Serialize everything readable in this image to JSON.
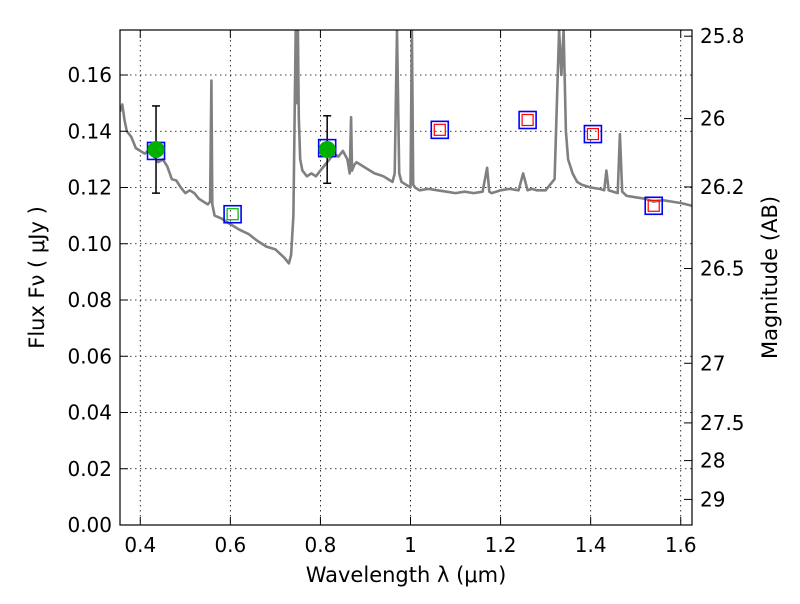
{
  "chart_data": {
    "type": "scatter",
    "xlabel": "Wavelength  λ (μm)",
    "ylabel": "Flux  Fν  ( μJy )",
    "ylabel_right": "Magnitude (AB)",
    "xlim": [
      0.355,
      1.625
    ],
    "ylim": [
      0.0,
      0.176
    ],
    "grid": true,
    "x_ticks": [
      {
        "value": 0.4,
        "label": "0.4"
      },
      {
        "value": 0.6,
        "label": "0.6"
      },
      {
        "value": 0.8,
        "label": "0.8"
      },
      {
        "value": 1.0,
        "label": "1"
      },
      {
        "value": 1.2,
        "label": "1.2"
      },
      {
        "value": 1.4,
        "label": "1.4"
      },
      {
        "value": 1.6,
        "label": "1.6"
      }
    ],
    "y_ticks": [
      {
        "value": 0.0,
        "label": "0.00"
      },
      {
        "value": 0.02,
        "label": "0.02"
      },
      {
        "value": 0.04,
        "label": "0.04"
      },
      {
        "value": 0.06,
        "label": "0.06"
      },
      {
        "value": 0.08,
        "label": "0.08"
      },
      {
        "value": 0.1,
        "label": "0.10"
      },
      {
        "value": 0.12,
        "label": "0.12"
      },
      {
        "value": 0.14,
        "label": "0.14"
      },
      {
        "value": 0.16,
        "label": "0.16"
      }
    ],
    "right_ticks": [
      {
        "flux": 0.1738,
        "label": "25.8"
      },
      {
        "flux": 0.1445,
        "label": "26"
      },
      {
        "flux": 0.1202,
        "label": "26.2"
      },
      {
        "flux": 0.0912,
        "label": "26.5"
      },
      {
        "flux": 0.0575,
        "label": "27"
      },
      {
        "flux": 0.0363,
        "label": "27.5"
      },
      {
        "flux": 0.0229,
        "label": "28"
      },
      {
        "flux": 0.0091,
        "label": "29"
      }
    ],
    "series": [
      {
        "kind": "model_spectrum",
        "color": "#808080",
        "x": [
          0.355,
          0.36,
          0.365,
          0.37,
          0.38,
          0.39,
          0.4,
          0.41,
          0.42,
          0.43,
          0.44,
          0.45,
          0.46,
          0.47,
          0.48,
          0.49,
          0.5,
          0.51,
          0.52,
          0.53,
          0.54,
          0.55,
          0.555,
          0.558,
          0.56,
          0.565,
          0.58,
          0.6,
          0.62,
          0.64,
          0.66,
          0.68,
          0.7,
          0.72,
          0.73,
          0.735,
          0.74,
          0.745,
          0.748,
          0.75,
          0.752,
          0.755,
          0.76,
          0.77,
          0.78,
          0.79,
          0.8,
          0.81,
          0.82,
          0.83,
          0.84,
          0.85,
          0.86,
          0.865,
          0.868,
          0.87,
          0.875,
          0.88,
          0.89,
          0.9,
          0.91,
          0.92,
          0.93,
          0.94,
          0.95,
          0.96,
          0.965,
          0.97,
          0.975,
          0.98,
          0.99,
          1.0,
          1.003,
          1.006,
          1.01,
          1.02,
          1.04,
          1.06,
          1.08,
          1.1,
          1.12,
          1.14,
          1.16,
          1.17,
          1.175,
          1.18,
          1.19,
          1.2,
          1.22,
          1.24,
          1.25,
          1.26,
          1.27,
          1.28,
          1.29,
          1.3,
          1.32,
          1.33,
          1.335,
          1.34,
          1.345,
          1.35,
          1.36,
          1.37,
          1.38,
          1.4,
          1.42,
          1.43,
          1.435,
          1.44,
          1.45,
          1.46,
          1.465,
          1.47,
          1.48,
          1.5,
          1.52,
          1.54,
          1.56,
          1.58,
          1.6,
          1.625
        ],
        "y": [
          0.147,
          0.1495,
          0.144,
          0.14,
          0.138,
          0.134,
          0.133,
          0.132,
          0.1335,
          0.131,
          0.129,
          0.13,
          0.1275,
          0.123,
          0.1225,
          0.12,
          0.118,
          0.119,
          0.118,
          0.116,
          0.115,
          0.114,
          0.115,
          0.158,
          0.114,
          0.11,
          0.109,
          0.107,
          0.105,
          0.1035,
          0.101,
          0.099,
          0.098,
          0.095,
          0.093,
          0.096,
          0.11,
          0.176,
          0.15,
          0.176,
          0.145,
          0.13,
          0.126,
          0.124,
          0.125,
          0.124,
          0.126,
          0.128,
          0.13,
          0.132,
          0.131,
          0.133,
          0.13,
          0.125,
          0.145,
          0.126,
          0.128,
          0.129,
          0.128,
          0.127,
          0.126,
          0.125,
          0.1245,
          0.124,
          0.123,
          0.122,
          0.125,
          0.176,
          0.125,
          0.122,
          0.121,
          0.12,
          0.176,
          0.121,
          0.12,
          0.119,
          0.1195,
          0.119,
          0.1185,
          0.118,
          0.1185,
          0.118,
          0.1185,
          0.127,
          0.1185,
          0.118,
          0.1185,
          0.119,
          0.1195,
          0.119,
          0.125,
          0.119,
          0.1195,
          0.119,
          0.119,
          0.119,
          0.123,
          0.176,
          0.16,
          0.176,
          0.14,
          0.13,
          0.125,
          0.122,
          0.121,
          0.12,
          0.1195,
          0.119,
          0.126,
          0.119,
          0.1185,
          0.118,
          0.139,
          0.1185,
          0.117,
          0.1165,
          0.116,
          0.115,
          0.1155,
          0.115,
          0.1145,
          0.1135
        ]
      },
      {
        "kind": "observed",
        "marker": "circle",
        "color": "#00b000",
        "points": [
          {
            "x": 0.435,
            "y": 0.1335,
            "yerr_low": 0.118,
            "yerr_high": 0.149
          },
          {
            "x": 0.815,
            "y": 0.1335,
            "yerr_low": 0.1215,
            "yerr_high": 0.1455
          }
        ]
      },
      {
        "kind": "model_photometry",
        "marker": "open-square",
        "color": "#0000ff",
        "points": [
          {
            "x": 0.435,
            "y": 0.133
          },
          {
            "x": 0.605,
            "y": 0.1105
          },
          {
            "x": 0.815,
            "y": 0.134
          },
          {
            "x": 1.065,
            "y": 0.1405
          },
          {
            "x": 1.26,
            "y": 0.144
          },
          {
            "x": 1.405,
            "y": 0.139
          },
          {
            "x": 1.54,
            "y": 0.1135
          }
        ]
      },
      {
        "kind": "upper_limits",
        "marker": "small-square",
        "color": "#ff0000",
        "points": [
          {
            "x": 1.065,
            "y": 0.1405
          },
          {
            "x": 1.26,
            "y": 0.144
          },
          {
            "x": 1.405,
            "y": 0.139
          },
          {
            "x": 1.54,
            "y": 0.1135
          }
        ]
      },
      {
        "kind": "small_green_marker",
        "marker": "small-square",
        "color": "#00b000",
        "points": [
          {
            "x": 0.605,
            "y": 0.1105
          }
        ]
      }
    ]
  }
}
